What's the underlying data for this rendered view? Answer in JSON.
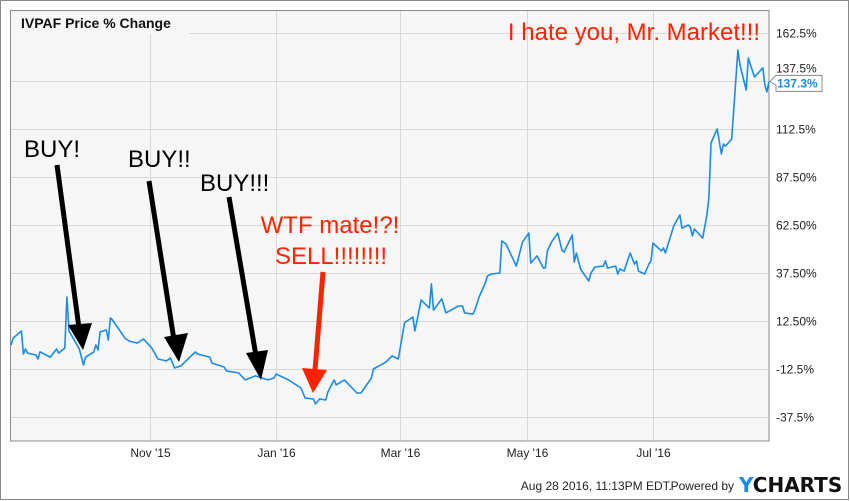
{
  "chart_data": {
    "type": "line",
    "title": "IVPAF Price % Change",
    "series": [
      {
        "color": "#1a8be6",
        "points": [
          [
            "2015-08-26",
            0.0
          ],
          [
            "2015-08-27",
            3.6
          ],
          [
            "2015-08-31",
            7.3
          ],
          [
            "2015-09-01",
            -4.7
          ],
          [
            "2015-09-02",
            -2.1
          ],
          [
            "2015-09-03",
            -4.2
          ],
          [
            "2015-09-07",
            -5.2
          ],
          [
            "2015-09-08",
            -7.3
          ],
          [
            "2015-09-09",
            -3.6
          ],
          [
            "2015-09-14",
            -6.3
          ],
          [
            "2015-09-17",
            -2.1
          ],
          [
            "2015-09-18",
            -4.2
          ],
          [
            "2015-09-21",
            -1.6
          ],
          [
            "2015-09-22",
            25.0
          ],
          [
            "2015-09-23",
            7.3
          ],
          [
            "2015-09-28",
            -2.1
          ],
          [
            "2015-09-30",
            -10.4
          ],
          [
            "2015-10-01",
            -6.3
          ],
          [
            "2015-10-05",
            -3.6
          ],
          [
            "2015-10-06",
            0.0
          ],
          [
            "2015-10-07",
            -2.6
          ],
          [
            "2015-10-08",
            6.8
          ],
          [
            "2015-10-11",
            7.8
          ],
          [
            "2015-10-12",
            2.6
          ],
          [
            "2015-10-13",
            14.1
          ],
          [
            "2015-10-14",
            13.0
          ],
          [
            "2015-10-20",
            3.6
          ],
          [
            "2015-10-22",
            2.1
          ],
          [
            "2015-10-26",
            1.0
          ],
          [
            "2015-10-29",
            3.1
          ],
          [
            "2015-11-02",
            -1.6
          ],
          [
            "2015-11-05",
            -7.3
          ],
          [
            "2015-11-09",
            -8.3
          ],
          [
            "2015-11-11",
            -6.8
          ],
          [
            "2015-11-13",
            -12.0
          ],
          [
            "2015-11-16",
            -10.9
          ],
          [
            "2015-11-19",
            -7.8
          ],
          [
            "2015-11-23",
            -3.6
          ],
          [
            "2015-11-24",
            -4.7
          ],
          [
            "2015-11-30",
            -6.3
          ],
          [
            "2015-12-01",
            -9.4
          ],
          [
            "2015-12-07",
            -11.5
          ],
          [
            "2015-12-08",
            -13.5
          ],
          [
            "2015-12-14",
            -14.6
          ],
          [
            "2015-12-17",
            -18.2
          ],
          [
            "2015-12-22",
            -16.1
          ],
          [
            "2015-12-28",
            -18.2
          ],
          [
            "2015-12-31",
            -17.2
          ],
          [
            "2016-01-01",
            -15.1
          ],
          [
            "2016-01-05",
            -17.2
          ],
          [
            "2016-01-07",
            -18.2
          ],
          [
            "2016-01-13",
            -22.4
          ],
          [
            "2016-01-15",
            -27.6
          ],
          [
            "2016-01-19",
            -28.1
          ],
          [
            "2016-01-20",
            -30.7
          ],
          [
            "2016-01-22",
            -28.1
          ],
          [
            "2016-01-25",
            -28.6
          ],
          [
            "2016-01-26",
            -24.5
          ],
          [
            "2016-01-28",
            -20.3
          ],
          [
            "2016-01-29",
            -18.2
          ],
          [
            "2016-01-30",
            -20.8
          ],
          [
            "2016-02-03",
            -18.2
          ],
          [
            "2016-02-09",
            -25.0
          ],
          [
            "2016-02-11",
            -25.0
          ],
          [
            "2016-02-16",
            -17.2
          ],
          [
            "2016-02-17",
            -12.5
          ],
          [
            "2016-02-23",
            -8.9
          ],
          [
            "2016-02-26",
            -5.7
          ],
          [
            "2016-02-29",
            -7.3
          ],
          [
            "2016-03-01",
            -1.0
          ],
          [
            "2016-03-03",
            11.5
          ],
          [
            "2016-03-07",
            14.6
          ],
          [
            "2016-03-08",
            7.3
          ],
          [
            "2016-03-11",
            23.4
          ],
          [
            "2016-03-15",
            19.3
          ],
          [
            "2016-03-16",
            31.8
          ],
          [
            "2016-03-17",
            18.2
          ],
          [
            "2016-03-21",
            24.0
          ],
          [
            "2016-03-23",
            16.7
          ],
          [
            "2016-03-29",
            20.3
          ],
          [
            "2016-03-31",
            20.3
          ],
          [
            "2016-04-01",
            16.7
          ],
          [
            "2016-04-05",
            16.1
          ],
          [
            "2016-04-06",
            18.2
          ],
          [
            "2016-04-08",
            25.0
          ],
          [
            "2016-04-11",
            32.3
          ],
          [
            "2016-04-12",
            35.9
          ],
          [
            "2016-04-14",
            37.0
          ],
          [
            "2016-04-18",
            37.5
          ],
          [
            "2016-04-19",
            54.2
          ],
          [
            "2016-04-21",
            52.6
          ],
          [
            "2016-04-26",
            41.1
          ],
          [
            "2016-04-29",
            53.6
          ],
          [
            "2016-05-02",
            58.3
          ],
          [
            "2016-05-03",
            42.7
          ],
          [
            "2016-05-06",
            46.4
          ],
          [
            "2016-05-09",
            40.1
          ],
          [
            "2016-05-10",
            40.1
          ],
          [
            "2016-05-11",
            49.0
          ],
          [
            "2016-05-13",
            53.6
          ],
          [
            "2016-05-16",
            58.3
          ],
          [
            "2016-05-18",
            49.5
          ],
          [
            "2016-05-19",
            48.4
          ],
          [
            "2016-05-23",
            57.3
          ],
          [
            "2016-05-24",
            43.2
          ],
          [
            "2016-05-25",
            47.9
          ],
          [
            "2016-05-27",
            39.6
          ],
          [
            "2016-05-31",
            33.3
          ],
          [
            "2016-06-01",
            37.5
          ],
          [
            "2016-06-03",
            40.6
          ],
          [
            "2016-06-07",
            41.1
          ],
          [
            "2016-06-08",
            43.8
          ],
          [
            "2016-06-09",
            40.1
          ],
          [
            "2016-06-13",
            41.1
          ],
          [
            "2016-06-14",
            37.0
          ],
          [
            "2016-06-15",
            39.6
          ],
          [
            "2016-06-17",
            38.5
          ],
          [
            "2016-06-20",
            47.9
          ],
          [
            "2016-06-22",
            42.2
          ],
          [
            "2016-06-23",
            43.8
          ],
          [
            "2016-06-24",
            38.5
          ],
          [
            "2016-06-27",
            37.0
          ],
          [
            "2016-06-29",
            42.2
          ],
          [
            "2016-06-30",
            43.8
          ],
          [
            "2016-07-01",
            53.1
          ],
          [
            "2016-07-05",
            49.0
          ],
          [
            "2016-07-06",
            50.5
          ],
          [
            "2016-07-07",
            47.9
          ],
          [
            "2016-07-11",
            62.0
          ],
          [
            "2016-07-14",
            67.7
          ],
          [
            "2016-07-15",
            60.9
          ],
          [
            "2016-07-18",
            62.5
          ],
          [
            "2016-07-19",
            61.5
          ],
          [
            "2016-07-20",
            56.8
          ],
          [
            "2016-07-21",
            60.4
          ],
          [
            "2016-07-25",
            55.7
          ],
          [
            "2016-07-27",
            67.7
          ],
          [
            "2016-07-28",
            76.6
          ],
          [
            "2016-07-29",
            105.2
          ],
          [
            "2016-08-01",
            112.5
          ],
          [
            "2016-08-03",
            99.5
          ],
          [
            "2016-08-04",
            104.7
          ],
          [
            "2016-08-05",
            103.6
          ],
          [
            "2016-08-08",
            107.3
          ],
          [
            "2016-08-11",
            153.6
          ],
          [
            "2016-08-12",
            145.8
          ],
          [
            "2016-08-15",
            132.8
          ],
          [
            "2016-08-16",
            149.5
          ],
          [
            "2016-08-19",
            139.6
          ],
          [
            "2016-08-23",
            144.3
          ],
          [
            "2016-08-24",
            135.4
          ],
          [
            "2016-08-25",
            131.8
          ],
          [
            "2016-08-26",
            137.3
          ]
        ]
      }
    ],
    "x_range": [
      "2015-08-26",
      "2016-08-26"
    ],
    "ylim": [
      -50,
      175
    ],
    "y_ticks": [
      {
        "value": 162.5,
        "label": "162.5%"
      },
      {
        "value": 137.5,
        "label": "137.5%"
      },
      {
        "value": 112.5,
        "label": "112.5%"
      },
      {
        "value": 87.5,
        "label": "87.50%"
      },
      {
        "value": 62.5,
        "label": "62.50%"
      },
      {
        "value": 37.5,
        "label": "37.50%"
      },
      {
        "value": 12.5,
        "label": "12.50%"
      },
      {
        "value": -12.5,
        "label": "-12.5%"
      },
      {
        "value": -37.5,
        "label": "-37.5%"
      }
    ],
    "x_ticks": [
      {
        "date": "2015-11-01",
        "label": "Nov '15"
      },
      {
        "date": "2016-01-01",
        "label": "Jan '16"
      },
      {
        "date": "2016-03-01",
        "label": "Mar '16"
      },
      {
        "date": "2016-05-01",
        "label": "May '16"
      },
      {
        "date": "2016-07-01",
        "label": "Jul '16"
      }
    ],
    "y_axis_side": "right",
    "grid": true,
    "last_value_label": "137.3%",
    "last_value": 137.3,
    "annotations": [
      {
        "text": "BUY!",
        "color": "#000000"
      },
      {
        "text": "BUY!!",
        "color": "#000000"
      },
      {
        "text": "BUY!!!",
        "color": "#000000"
      },
      {
        "text": "WTF mate!?!",
        "color": "#ff2200"
      },
      {
        "text": "SELL!!!!!!!!",
        "color": "#ff2200"
      },
      {
        "text": "I hate you, Mr. Market!!!",
        "color": "#ff2200"
      }
    ]
  },
  "footer": {
    "timestamp": "Aug 28 2016, 11:13PM EDT.",
    "powered_by": "Powered by",
    "brand": "YCHARTS"
  },
  "colors": {
    "line": "#1a8be6",
    "plot_bg": "#f6f6f6",
    "grid": "#d8d8d8",
    "annotation_red": "#ff2200"
  }
}
